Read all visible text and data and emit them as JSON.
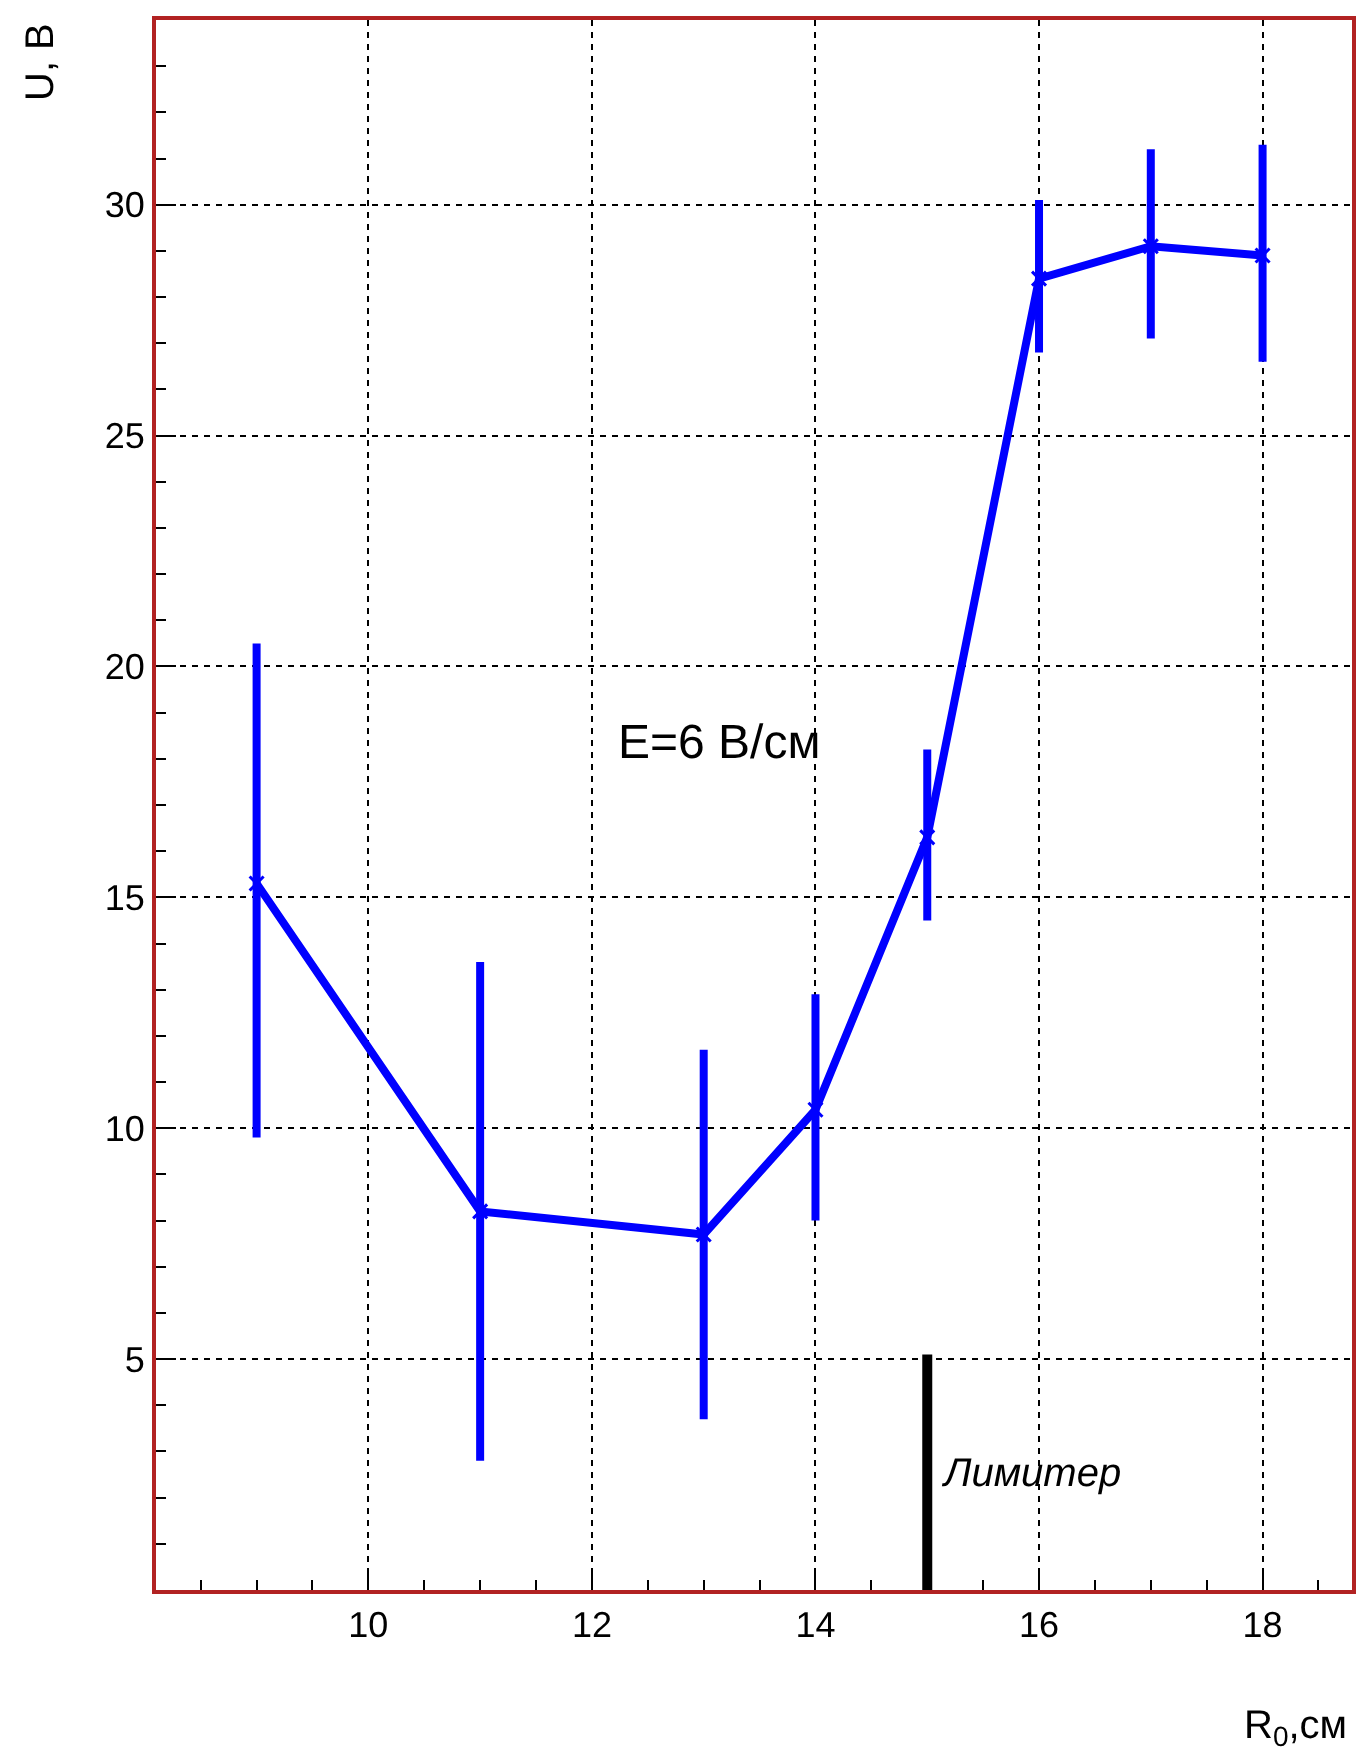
{
  "chart_data": {
    "type": "line",
    "xlabel": "R$_{0}$,см",
    "ylabel": "U, В",
    "x": [
      9,
      11,
      13,
      14,
      15,
      16,
      17,
      18
    ],
    "series": [
      {
        "color": "#0000ff",
        "values": [
          15.3,
          8.2,
          7.7,
          10.4,
          16.3,
          28.4,
          29.1,
          28.9
        ],
        "errors": [
          [
            9.8,
            20.5
          ],
          [
            2.8,
            13.6
          ],
          [
            3.7,
            11.7
          ],
          [
            8.0,
            12.9
          ],
          [
            14.5,
            18.2
          ],
          [
            26.8,
            30.1
          ],
          [
            27.1,
            31.2
          ],
          [
            26.6,
            31.3
          ]
        ],
        "marker": "cross"
      },
      {
        "color": "#000000",
        "x": [
          15,
          15
        ],
        "values": [
          0,
          5.1
        ],
        "marker": "none"
      }
    ],
    "annotations": [
      "E=6 В/см",
      {
        "text": "Лимитер",
        "x": 15,
        "y": 2.5
      }
    ],
    "xlim": [
      8.1,
      18.8
    ],
    "xticks": [
      10,
      12,
      14,
      16,
      18
    ],
    "ylim": [
      0,
      34
    ],
    "yticks": [
      5,
      10,
      15,
      20,
      25,
      30
    ],
    "grid": true,
    "line_style": "solid"
  }
}
